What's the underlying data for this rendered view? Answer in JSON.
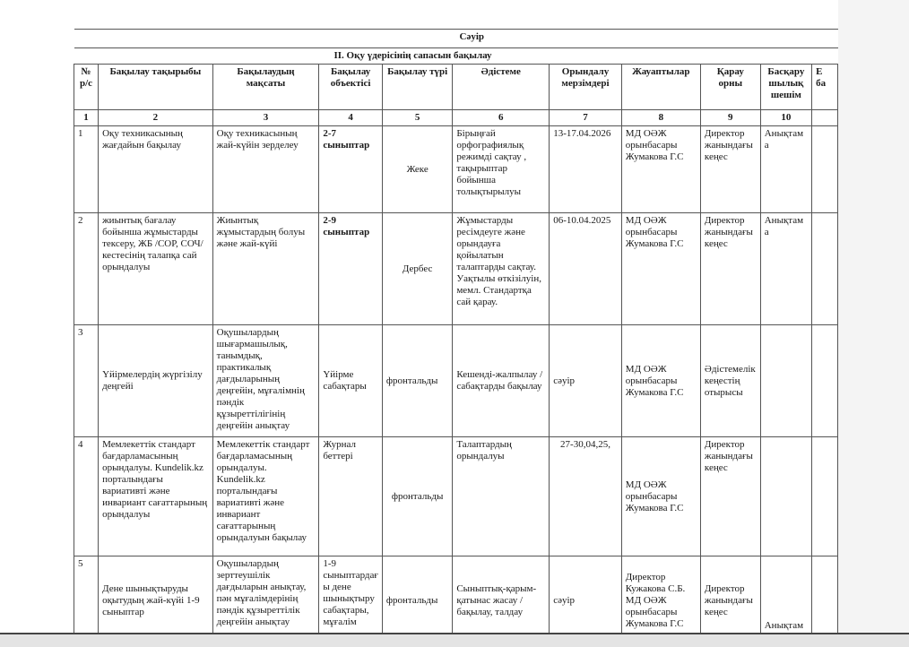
{
  "month": "Сәуір",
  "section": "II. Оқу үдерісінің сапасын бақылау",
  "headers": [
    "№ р/с",
    "Бақылау тақырыбы",
    "Бақылаудың мақсаты",
    "Бақылау объектісі",
    "Бақылау түрі",
    "Әдістеме",
    "Орындалу мерзімдері",
    "Жауаптылар",
    "Қарау орны",
    "Басқару шылық шешім",
    "Е ба"
  ],
  "numbers": [
    "1",
    "2",
    "3",
    "4",
    "5",
    "6",
    "7",
    "8",
    "9",
    "10",
    ""
  ],
  "rows": [
    [
      "1",
      "Оқу техникасының жағдайын бақылау",
      "Оқу техникасының жай-күйін зерделеу",
      "2-7\nсыныптар",
      "Жеке",
      "Бірыңғай орфографиялық режимді сақтау , тақырыптар бойынша толықтырылуы",
      "13-17.04.2026",
      "МД ОӘЖ орынбасары Жумакова Г.С",
      "Директор жанындағы кеңес",
      "Анықтам а"
    ],
    [
      "2",
      "жиынтық бағалау бойынша жұмыстарды тексеру, ЖБ /СОР, СОЧ/ кестесінің талапқа сай орындалуы",
      "Жиынтық жұмыстардың болуы және жай-күйі",
      "2-9\nсыныптар",
      "Дербес",
      "Жұмыстарды ресімдеуге және орындауға қойылатын талаптарды сақтау. Уақтылы өткізілуін, мемл. Стандартқа сай қарау.",
      "06-10.04.2025",
      "МД ОӘЖ орынбасары Жумакова Г.С",
      "Директор жанындағы кеңес",
      "Анықтам а"
    ],
    [
      "3",
      "Үйірмелердің жүргізілу деңгейі",
      "Оқушылардың шығармашылық, танымдық, практикалық дағдыларының деңгейін, мұғалімнің пәндік құзыреттілігінің деңгейін анықтау",
      "Үйірме сабақтары",
      "фронтальды",
      "Кешенді-жалпылау / сабақтарды бақылау",
      "сәуір",
      "МД ОӘЖ орынбасары Жумакова Г.С",
      "Әдістемелік кеңестің отырысы",
      ""
    ],
    [
      "4",
      "Мемлекеттік стандарт бағдарламасының орындалуы. Kundelik.kz порталындағы вариативті және инвариант сағаттарының орындалуы",
      "Мемлекеттік стандарт бағдарламасының орындалуы. Kundelik.kz порталындағы вариативті және инвариант сағаттарының орындалуын бақылау",
      "Журнал беттері",
      "фронтальды",
      "Талаптардың орындалуы",
      "27-30,04,25,",
      "МД ОӘЖ орынбасары Жумакова Г.С",
      "Директор жанындағы кеңес",
      ""
    ],
    [
      "5",
      "Дене шынықтыруды оқытудың жай-күйі 1-9 сыныптар",
      "Оқушылардың зерттеушілік дағдыларын анықтау, пән мұғалімдерінің пәндік құзыреттілік деңгейін анықтау",
      "1-9 сыныптардағ ы дене шынықтыру сабақтары, мұғалім",
      "фронтальды",
      "Сыныптық-қарым-қатынас жасау / бақылау, талдау",
      "сәуір",
      "Директор Кужакова С.Б. МД ОӘЖ орынбасары Жумакова Г.С",
      "Директор жанындағы кеңес",
      "Анықтам а"
    ]
  ]
}
